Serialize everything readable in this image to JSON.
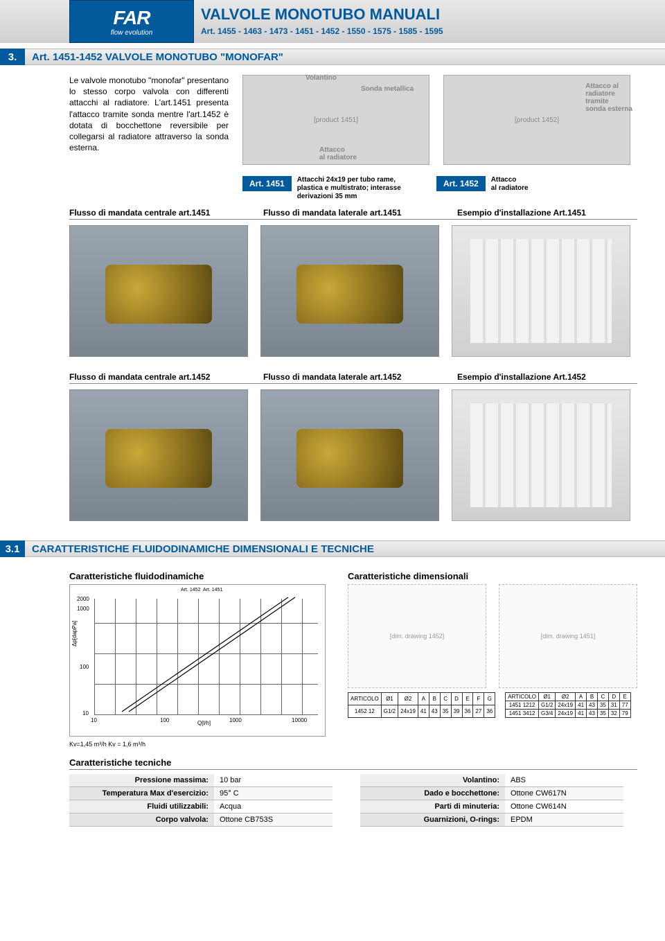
{
  "colors": {
    "brand_blue": "#005a9c",
    "header_grad_top": "#e8e8e8",
    "header_grad_bot": "#d0d0d0",
    "grid_major": "#666666",
    "grid_minor": "#cccccc"
  },
  "logo": {
    "main": "FAR",
    "sub": "flow evolution"
  },
  "header": {
    "title": "VALVOLE MONOTUBO MANUALI",
    "subtitle": "Art. 1455 - 1463 - 1473 - 1451 - 1452 - 1550 - 1575 - 1585 - 1595"
  },
  "section3": {
    "num": "3.",
    "title": "Art. 1451-1452 VALVOLE MONOTUBO \"MONOFAR\"",
    "intro": "Le valvole monotubo \"monofar\" presentano lo stesso corpo valvola con differenti attacchi al radiatore. L'art.1451 presenta l'attacco tramite sonda mentre l'art.1452 è dotata di bocchettone reversibile per collegarsi al radiatore attraverso la sonda esterna.",
    "callouts": {
      "volantino": "Volantino",
      "sonda": "Sonda metallica",
      "attacco_rad": "Attacco\nal radiatore",
      "attacco_ext": "Attacco al\nradiatore\ntramite\nsonda esterna"
    },
    "art1451_label": "Art. 1451",
    "art1451_desc": "Attacchi 24x19 per tubo rame, plastica e multistrato; interasse derivazioni 35 mm",
    "art1452_label": "Art. 1452",
    "art1452_desc": "Attacco\nal radiatore",
    "row1": {
      "cap_center": "Flusso di mandata centrale art.1451",
      "cap_lat": "Flusso di mandata laterale art.1451",
      "cap_inst": "Esempio d'installazione Art.1451"
    },
    "row2": {
      "cap_center": "Flusso di mandata centrale art.1452",
      "cap_lat": "Flusso di mandata laterale art.1452",
      "cap_inst": "Esempio d'installazione Art.1452"
    }
  },
  "section31": {
    "num": "3.1",
    "title": "CARATTERISTICHE FLUIDODINAMICHE DIMENSIONALI E TECNICHE",
    "fluid_head": "Caratteristiche fluidodinamiche",
    "dim_head": "Caratteristiche dimensionali",
    "chart": {
      "y_label": "Δp[dapPa]",
      "x_label": "Q[l/h]",
      "x_ticks": [
        "10",
        "100",
        "1000",
        "10000"
      ],
      "y_ticks": [
        "10",
        "100",
        "1000",
        "2000"
      ],
      "series_labels": [
        "Art. 1452",
        "Art. 1451"
      ],
      "scale": "log-log",
      "kv_note": "Kv=1,45 m³/h    Kv = 1,6 m³/h"
    },
    "dim_table_1452": {
      "caption_headers": [
        "ARTICOLO",
        "Ø1",
        "Ø2",
        "A",
        "B",
        "C",
        "D",
        "E",
        "F",
        "G"
      ],
      "rows": [
        [
          "1452 12",
          "G1/2",
          "24x19",
          "41",
          "43",
          "35",
          "39",
          "36",
          "27",
          "36"
        ]
      ]
    },
    "dim_table_1451": {
      "caption_headers": [
        "ARTICOLO",
        "Ø1",
        "Ø2",
        "A",
        "B",
        "C",
        "D",
        "E"
      ],
      "rows": [
        [
          "1451 1212",
          "G1/2",
          "24x19",
          "41",
          "43",
          "35",
          "31",
          "77"
        ],
        [
          "1451 3412",
          "G3/4",
          "24x19",
          "41",
          "43",
          "35",
          "32",
          "79"
        ]
      ]
    },
    "tech_head": "Caratteristiche tecniche",
    "tech_left": [
      [
        "Pressione massima:",
        "10 bar"
      ],
      [
        "Temperatura Max d'esercizio:",
        "95° C"
      ],
      [
        "Fluidi utilizzabili:",
        "Acqua"
      ],
      [
        "Corpo valvola:",
        "Ottone CB753S"
      ]
    ],
    "tech_right": [
      [
        "Volantino:",
        "ABS"
      ],
      [
        "Dado e bocchettone:",
        "Ottone CW617N"
      ],
      [
        "Parti di minuteria:",
        "Ottone CW614N"
      ],
      [
        "Guarnizioni, O-rings:",
        "EPDM"
      ]
    ]
  }
}
